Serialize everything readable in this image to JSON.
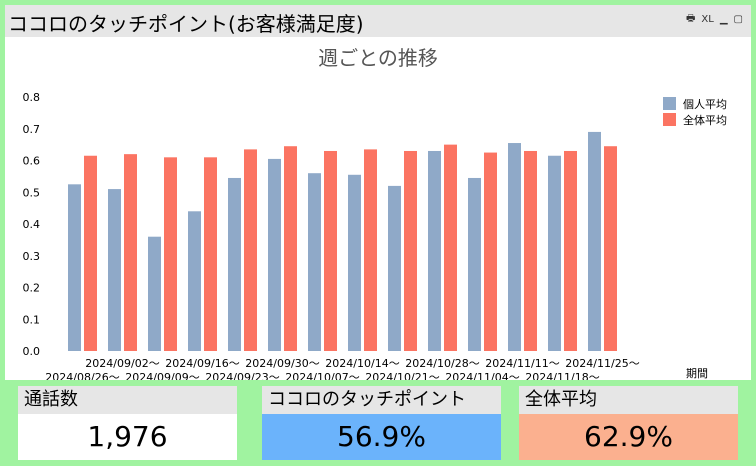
{
  "panel": {
    "title": "ココロのタッチポイント(お客様満足度)",
    "tools": [
      "XL",
      "▁",
      "▢"
    ]
  },
  "chart_data": {
    "type": "bar",
    "title": "週ごとの推移",
    "xlabel": "期間",
    "ylabel": "",
    "ylim": [
      0,
      0.8
    ],
    "yticks": [
      "0.0",
      "0.1",
      "0.2",
      "0.3",
      "0.4",
      "0.5",
      "0.6",
      "0.7",
      "0.8"
    ],
    "categories": [
      "2024/08/26～",
      "2024/09/02～",
      "2024/09/09～",
      "2024/09/16～",
      "2024/09/23～",
      "2024/09/30～",
      "2024/10/07～",
      "2024/10/14～",
      "2024/10/21～",
      "2024/10/28～",
      "2024/11/04～",
      "2024/11/11～",
      "2024/11/18～",
      "2024/11/25～"
    ],
    "legend_position": "top-right",
    "grid": false,
    "series": [
      {
        "name": "個人平均",
        "color": "#8fa9c8",
        "values": [
          0.525,
          0.51,
          0.36,
          0.44,
          0.545,
          0.605,
          0.56,
          0.555,
          0.52,
          0.63,
          0.545,
          0.655,
          0.615,
          0.69
        ]
      },
      {
        "name": "全体平均",
        "color": "#fb7462",
        "values": [
          0.615,
          0.62,
          0.61,
          0.61,
          0.635,
          0.645,
          0.63,
          0.635,
          0.63,
          0.65,
          0.625,
          0.63,
          0.63,
          0.645
        ]
      }
    ]
  },
  "kpis": [
    {
      "label": "通話数",
      "value": "1,976",
      "bg": "#ffffff"
    },
    {
      "label": "ココロのタッチポイント",
      "value": "56.9%",
      "bg": "#6bb3fb"
    },
    {
      "label": "全体平均",
      "value": "62.9%",
      "bg": "#fbb08f"
    }
  ]
}
